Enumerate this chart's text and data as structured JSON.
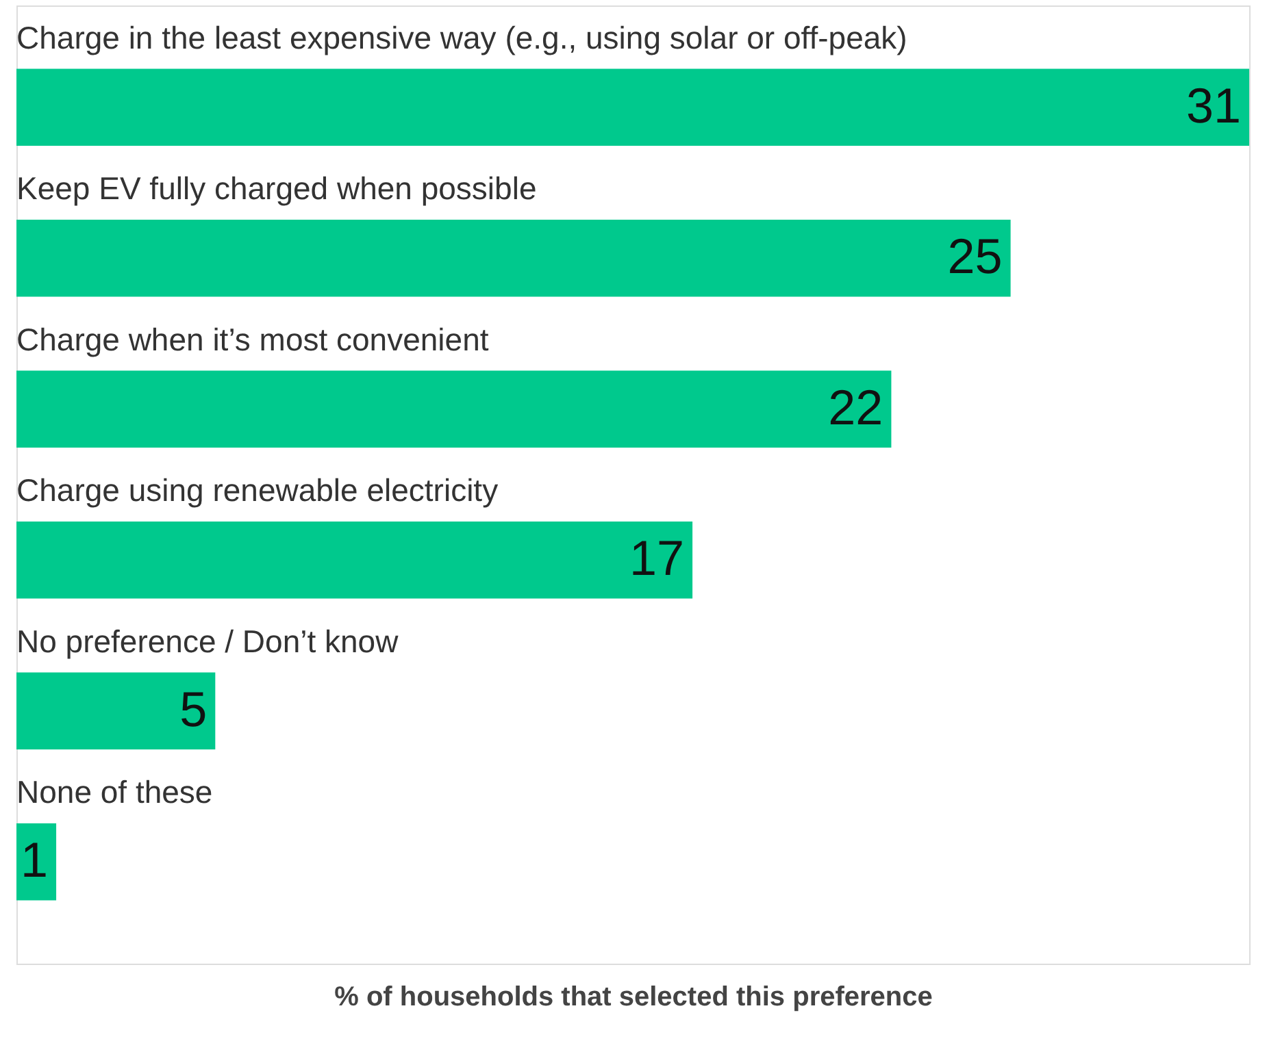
{
  "chart_data": {
    "type": "bar",
    "orientation": "horizontal",
    "categories": [
      "Charge in the least expensive way (e.g., using solar or off-peak)",
      "Keep EV fully charged when possible",
      "Charge when it’s most convenient",
      "Charge using renewable electricity",
      "No preference / Don’t know",
      "None of these"
    ],
    "values": [
      31,
      25,
      22,
      17,
      5,
      1
    ],
    "color": "#00c98d",
    "data_labels": true,
    "tick_labels": false,
    "xlabel": "% of households that selected this preference"
  }
}
